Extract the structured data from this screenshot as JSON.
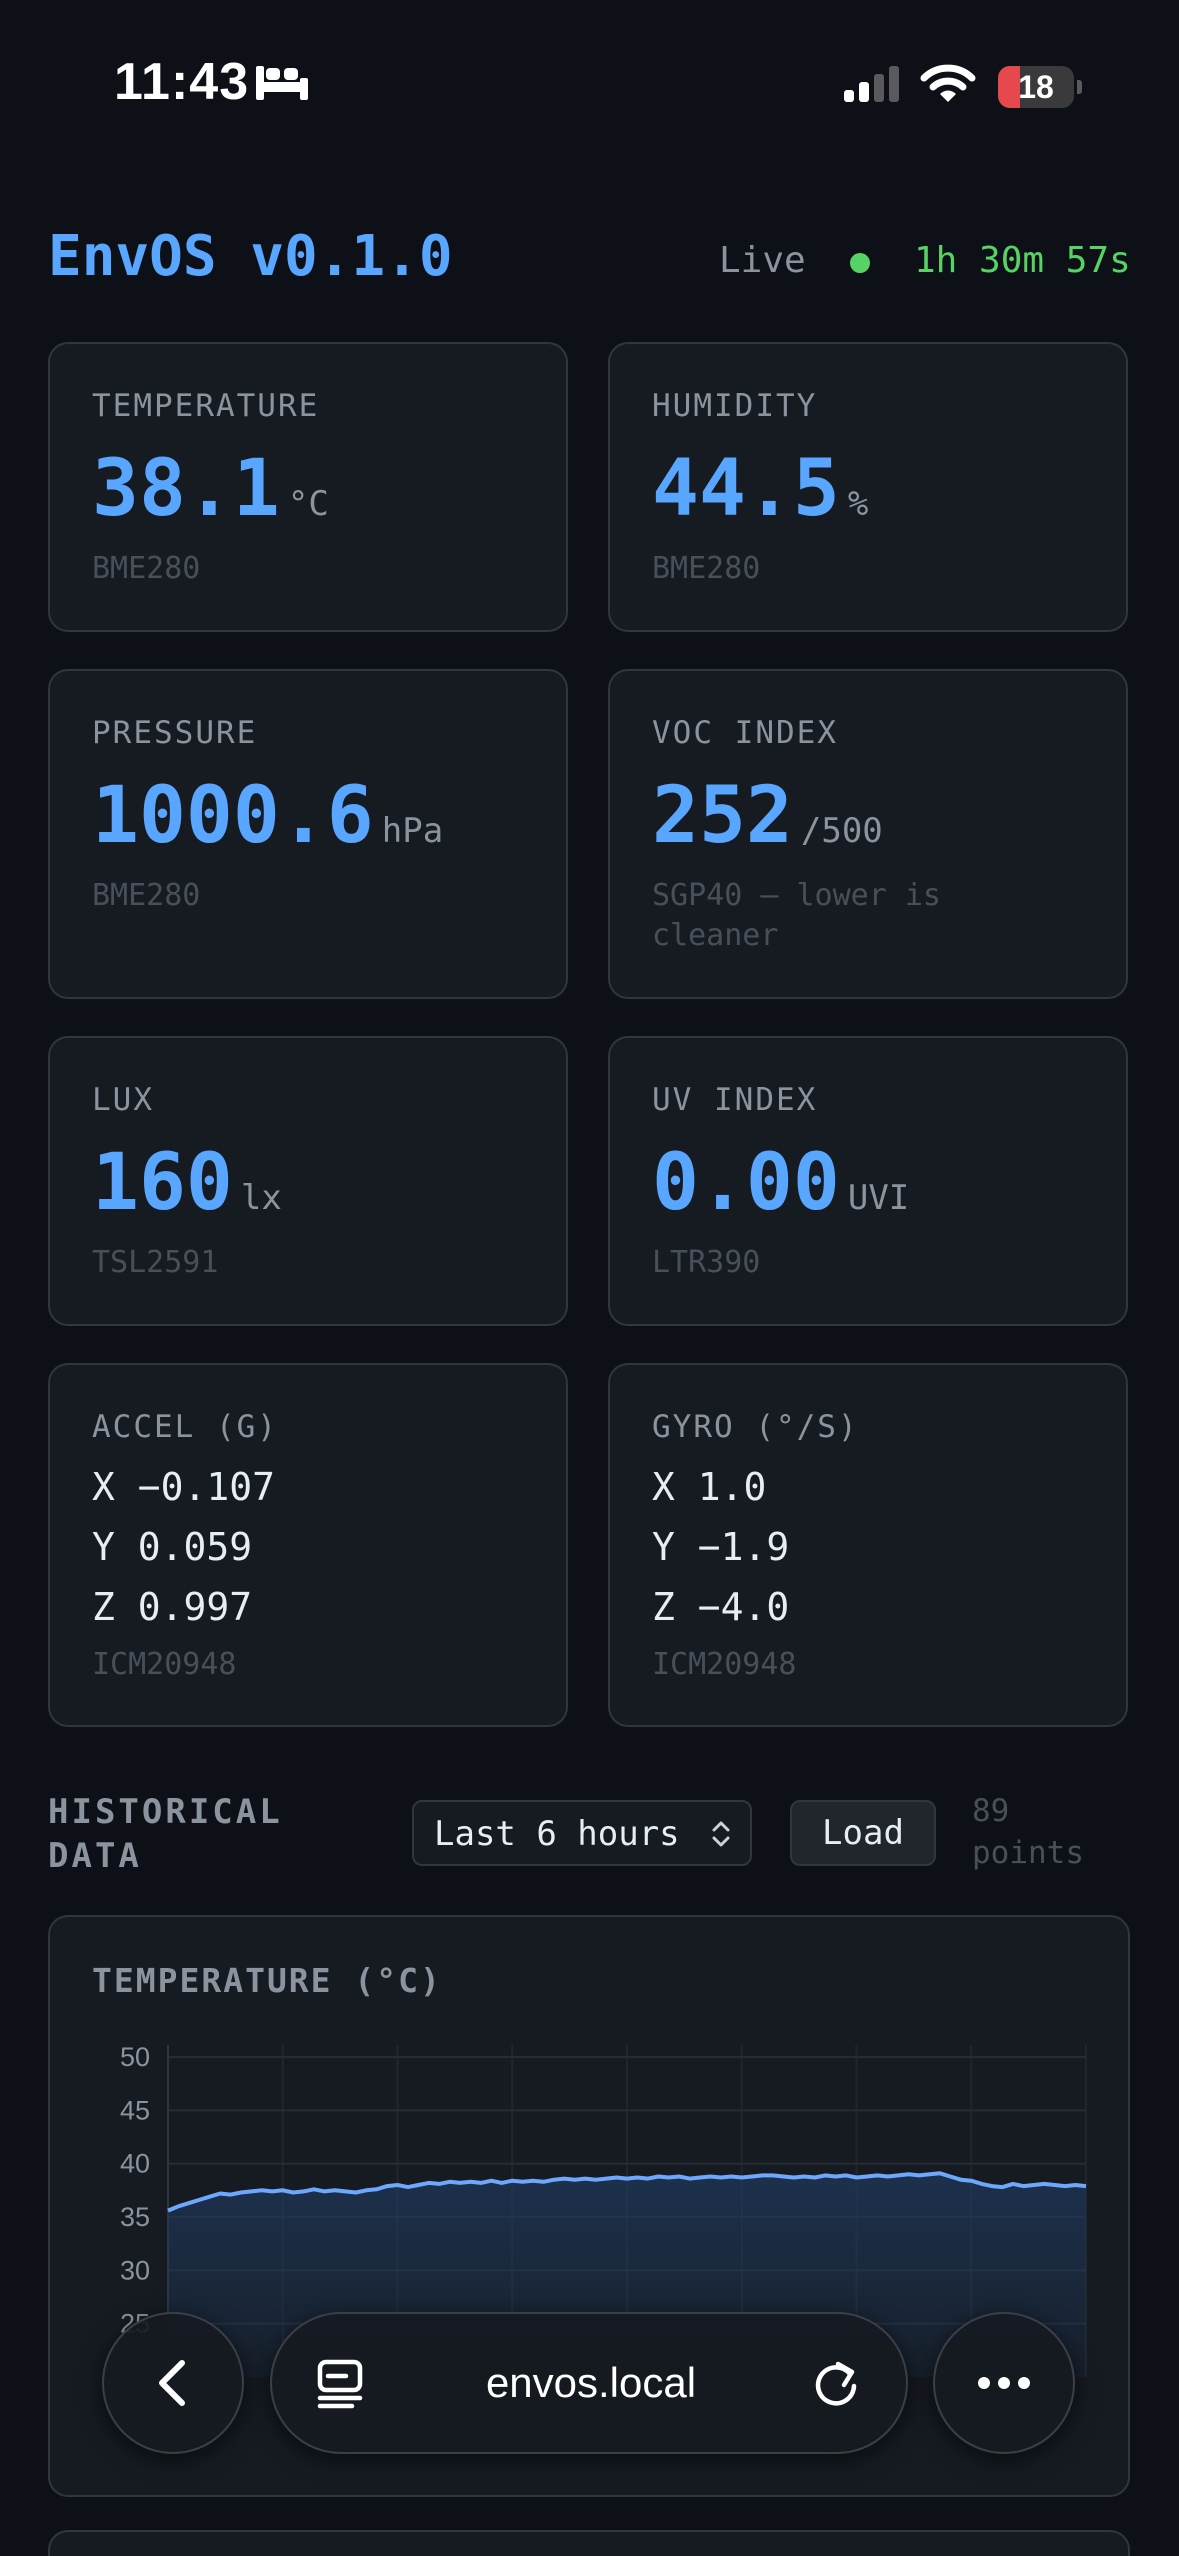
{
  "status_bar": {
    "time": "11:43",
    "battery": "18"
  },
  "header": {
    "title": "EnvOS v0.1.0",
    "live_label": "Live",
    "uptime": "1h 30m 57s"
  },
  "cards": {
    "temperature": {
      "label": "TEMPERATURE",
      "value": "38.1",
      "unit": "°C",
      "sensor": "BME280"
    },
    "humidity": {
      "label": "HUMIDITY",
      "value": "44.5",
      "unit": "%",
      "sensor": "BME280"
    },
    "pressure": {
      "label": "PRESSURE",
      "value": "1000.6",
      "unit": "hPa",
      "sensor": "BME280"
    },
    "voc": {
      "label": "VOC INDEX",
      "value": "252",
      "unit": "/500",
      "sensor": "SGP40 — lower is cleaner"
    },
    "lux": {
      "label": "LUX",
      "value": "160",
      "unit": "lx",
      "sensor": "TSL2591"
    },
    "uv": {
      "label": "UV INDEX",
      "value": "0.00",
      "unit": "UVI",
      "sensor": "LTR390"
    },
    "accel": {
      "label": "ACCEL (G)",
      "x": "X −0.107",
      "y": "Y 0.059",
      "z": "Z 0.997",
      "sensor": "ICM20948"
    },
    "gyro": {
      "label": "GYRO (°/S)",
      "x": "X 1.0",
      "y": "Y −1.9",
      "z": "Z −4.0",
      "sensor": "ICM20948"
    }
  },
  "historical": {
    "title_line1": "HISTORICAL",
    "title_line2": "DATA",
    "range_selected": "Last 6 hours",
    "load_label": "Load",
    "points_count": "89",
    "points_label": "points"
  },
  "chart_data": {
    "type": "area",
    "title": "TEMPERATURE (°C)",
    "ylim": [
      20,
      50
    ],
    "yticks": [
      50,
      45,
      40,
      35,
      30,
      25
    ],
    "grid": true,
    "color": "#6ea8fe",
    "values": [
      35.6,
      36.0,
      36.3,
      36.6,
      36.9,
      37.2,
      37.1,
      37.3,
      37.4,
      37.5,
      37.4,
      37.5,
      37.3,
      37.4,
      37.6,
      37.4,
      37.5,
      37.4,
      37.3,
      37.5,
      37.6,
      37.9,
      38.0,
      37.8,
      38.0,
      38.2,
      38.1,
      38.3,
      38.2,
      38.3,
      38.2,
      38.4,
      38.2,
      38.4,
      38.3,
      38.4,
      38.3,
      38.5,
      38.6,
      38.5,
      38.6,
      38.5,
      38.6,
      38.7,
      38.6,
      38.7,
      38.6,
      38.8,
      38.7,
      38.8,
      38.6,
      38.7,
      38.8,
      38.7,
      38.8,
      38.7,
      38.8,
      38.9,
      38.9,
      38.8,
      38.7,
      38.8,
      38.7,
      38.9,
      38.8,
      38.9,
      38.7,
      38.8,
      38.9,
      38.8,
      38.9,
      39.0,
      38.9,
      39.0,
      39.1,
      38.8,
      38.5,
      38.4,
      38.1,
      37.9,
      37.8,
      38.1,
      37.9,
      38.0,
      38.1,
      38.0,
      37.9,
      38.0,
      37.9
    ]
  },
  "browser": {
    "url": "envos.local"
  },
  "icons": {
    "status": [
      "bed-icon",
      "cellular-signal-icon",
      "wifi-icon",
      "battery-icon"
    ],
    "browser": [
      "back-chevron-icon",
      "tabs-icon",
      "reload-icon",
      "more-icon"
    ],
    "select": "select-chevron-icon"
  }
}
